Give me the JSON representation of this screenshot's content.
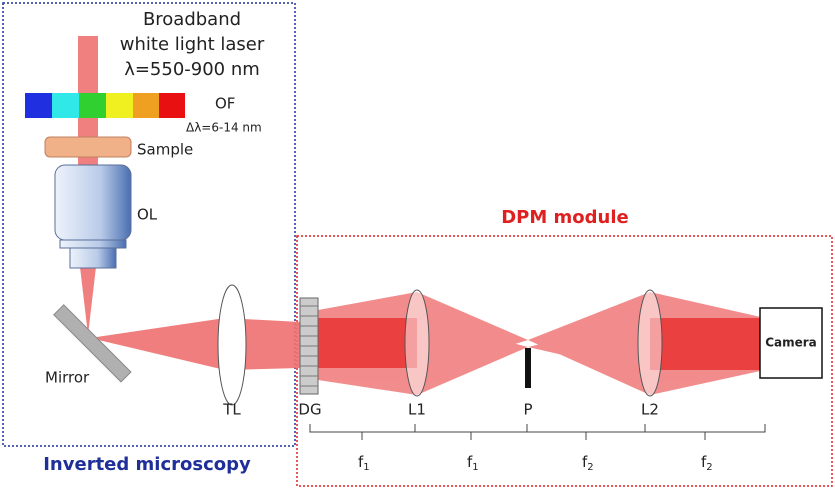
{
  "laser": {
    "line1": "Broadband",
    "line2": "white light laser",
    "line3": "λ=550-900 nm"
  },
  "filter": {
    "label": "OF",
    "bandwidth": "Δλ=6-14 nm"
  },
  "sample": "Sample",
  "objective": "OL",
  "mirror": "Mirror",
  "lenses": {
    "tube": "TL",
    "grating": "DG",
    "lens1": "L1",
    "pinhole": "P",
    "lens2": "L2"
  },
  "camera": "Camera",
  "sections": {
    "microscope": "Inverted microscopy",
    "module": "DPM module"
  },
  "distances": [
    {
      "label": "f",
      "sub": "1"
    },
    {
      "label": "f",
      "sub": "1"
    },
    {
      "label": "f",
      "sub": "2"
    },
    {
      "label": "f",
      "sub": "2"
    }
  ]
}
